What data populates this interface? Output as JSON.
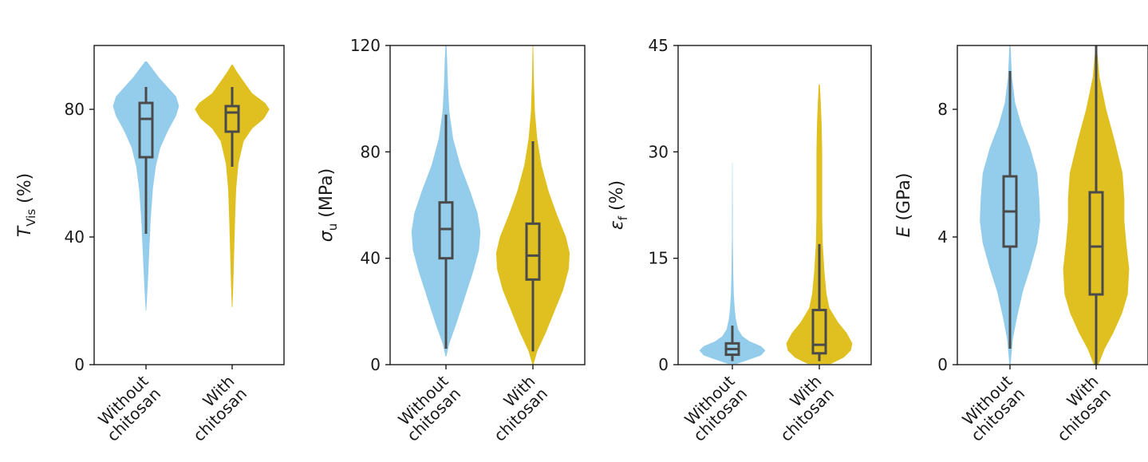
{
  "colors": {
    "without_chitosan": "#93cdeb",
    "with_chitosan": "#dfc020",
    "box": "#4a4a4a"
  },
  "chart_data": [
    {
      "type": "violin",
      "ylabel": {
        "main": "T",
        "sub": "Vis",
        "rest": " (%)"
      },
      "ylim": [
        0,
        100
      ],
      "yticks": [
        0,
        40,
        80
      ],
      "categories": [
        "Without\nchitosan",
        "With\nchitosan"
      ],
      "series": [
        {
          "color_key": "without_chitosan",
          "box": {
            "whisker_low": 41,
            "q1": 65,
            "median": 77,
            "q3": 82,
            "whisker_high": 87
          },
          "density": [
            [
              17,
              0.1
            ],
            [
              25,
              0.6
            ],
            [
              35,
              1.1
            ],
            [
              45,
              1.6
            ],
            [
              55,
              2.4
            ],
            [
              62,
              3.4
            ],
            [
              68,
              5
            ],
            [
              73,
              7.5
            ],
            [
              78,
              10.5
            ],
            [
              81,
              11.5
            ],
            [
              84,
              10.5
            ],
            [
              87,
              7.5
            ],
            [
              90,
              4.5
            ],
            [
              93,
              2
            ],
            [
              95,
              0.3
            ]
          ]
        },
        {
          "color_key": "with_chitosan",
          "box": {
            "whisker_low": 62,
            "q1": 73,
            "median": 79,
            "q3": 81,
            "whisker_high": 87
          },
          "density": [
            [
              18,
              0.1
            ],
            [
              25,
              0.4
            ],
            [
              35,
              0.7
            ],
            [
              45,
              1
            ],
            [
              55,
              1.4
            ],
            [
              63,
              2.2
            ],
            [
              70,
              4
            ],
            [
              74,
              7
            ],
            [
              77,
              11
            ],
            [
              80,
              13
            ],
            [
              82,
              11.5
            ],
            [
              85,
              7
            ],
            [
              89,
              3.8
            ],
            [
              92,
              1.5
            ],
            [
              94,
              0.2
            ]
          ]
        }
      ]
    },
    {
      "type": "violin",
      "ylabel": {
        "main": "σ",
        "sub": "u",
        "rest": " (MPa)"
      },
      "ylim": [
        0,
        120
      ],
      "yticks": [
        0,
        40,
        80,
        120
      ],
      "categories": [
        "Without\nchitosan",
        "With\nchitosan"
      ],
      "series": [
        {
          "color_key": "without_chitosan",
          "box": {
            "whisker_low": 6,
            "q1": 40,
            "median": 51,
            "q3": 61,
            "whisker_high": 94
          },
          "density": [
            [
              3,
              0.1
            ],
            [
              8,
              1.2
            ],
            [
              15,
              3.5
            ],
            [
              25,
              6.5
            ],
            [
              35,
              9.5
            ],
            [
              43,
              11.5
            ],
            [
              50,
              12
            ],
            [
              57,
              11
            ],
            [
              65,
              8.5
            ],
            [
              75,
              5
            ],
            [
              85,
              2.5
            ],
            [
              95,
              1.2
            ],
            [
              105,
              0.7
            ],
            [
              115,
              0.4
            ],
            [
              120,
              0.2
            ]
          ]
        },
        {
          "color_key": "with_chitosan",
          "box": {
            "whisker_low": 5,
            "q1": 32,
            "median": 41,
            "q3": 53,
            "whisker_high": 84
          },
          "density": [
            [
              0,
              0.2
            ],
            [
              5,
              1.5
            ],
            [
              12,
              4.5
            ],
            [
              20,
              7.5
            ],
            [
              28,
              10.5
            ],
            [
              36,
              12.5
            ],
            [
              42,
              12.8
            ],
            [
              48,
              11.5
            ],
            [
              56,
              8.5
            ],
            [
              65,
              5.5
            ],
            [
              75,
              3
            ],
            [
              85,
              1.5
            ],
            [
              95,
              0.7
            ],
            [
              108,
              0.3
            ],
            [
              120,
              0.1
            ]
          ]
        }
      ]
    },
    {
      "type": "violin",
      "ylabel": {
        "main": "ε",
        "sub": "f",
        "rest": " (%)"
      },
      "ylim": [
        0,
        45
      ],
      "yticks": [
        0,
        15,
        30,
        45
      ],
      "categories": [
        "Without\nchitosan",
        "With\nchitosan"
      ],
      "series": [
        {
          "color_key": "without_chitosan",
          "box": {
            "whisker_low": 0.5,
            "q1": 1.4,
            "median": 2.2,
            "q3": 3.0,
            "whisker_high": 5.5
          },
          "density": [
            [
              0.1,
              1.5
            ],
            [
              0.6,
              5
            ],
            [
              1.3,
              10
            ],
            [
              2,
              11.5
            ],
            [
              2.6,
              10
            ],
            [
              3.3,
              6
            ],
            [
              4,
              3.5
            ],
            [
              5,
              2
            ],
            [
              6.5,
              1.2
            ],
            [
              8,
              0.8
            ],
            [
              10,
              0.5
            ],
            [
              13,
              0.3
            ],
            [
              18,
              0.15
            ],
            [
              23,
              0.1
            ],
            [
              28.5,
              0.05
            ]
          ]
        },
        {
          "color_key": "with_chitosan",
          "box": {
            "whisker_low": 0.5,
            "q1": 1.6,
            "median": 2.8,
            "q3": 7.7,
            "whisker_high": 17
          },
          "density": [
            [
              0.1,
              4
            ],
            [
              1,
              8.5
            ],
            [
              2,
              11
            ],
            [
              3,
              11.5
            ],
            [
              4.5,
              9.5
            ],
            [
              6,
              6.5
            ],
            [
              8,
              3.5
            ],
            [
              10,
              2.5
            ],
            [
              13,
              1.8
            ],
            [
              17,
              1.2
            ],
            [
              21,
              1
            ],
            [
              25,
              1
            ],
            [
              30,
              1
            ],
            [
              34,
              0.8
            ],
            [
              37,
              0.5
            ],
            [
              39.5,
              0.2
            ]
          ]
        }
      ]
    },
    {
      "type": "violin",
      "ylabel": {
        "main": "E",
        "sub": "",
        "rest": " (GPa)"
      },
      "ylim": [
        0,
        10
      ],
      "yticks": [
        0,
        4,
        8
      ],
      "categories": [
        "Without\nchitosan",
        "With\nchitosan"
      ],
      "series": [
        {
          "color_key": "without_chitosan",
          "box": {
            "whisker_low": 0.5,
            "q1": 3.7,
            "median": 4.8,
            "q3": 5.9,
            "whisker_high": 9.2
          },
          "density": [
            [
              0,
              0.2
            ],
            [
              0.8,
              1
            ],
            [
              1.5,
              2.5
            ],
            [
              2.3,
              4.5
            ],
            [
              3,
              7
            ],
            [
              3.8,
              9.5
            ],
            [
              4.5,
              10.5
            ],
            [
              5.2,
              10.2
            ],
            [
              6,
              9.5
            ],
            [
              6.8,
              7
            ],
            [
              7.5,
              4
            ],
            [
              8.2,
              1.8
            ],
            [
              9,
              0.7
            ],
            [
              10,
              0.2
            ]
          ]
        },
        {
          "color_key": "with_chitosan",
          "box": {
            "whisker_low": 0,
            "q1": 2.2,
            "median": 3.7,
            "q3": 5.4,
            "whisker_high": 10
          },
          "density": [
            [
              0,
              0.8
            ],
            [
              0.5,
              3
            ],
            [
              1,
              6
            ],
            [
              1.6,
              9
            ],
            [
              2.2,
              11
            ],
            [
              3,
              11.5
            ],
            [
              3.8,
              10.5
            ],
            [
              4.5,
              9.8
            ],
            [
              5.2,
              9.8
            ],
            [
              6,
              9.2
            ],
            [
              7,
              6.5
            ],
            [
              8,
              3.5
            ],
            [
              9,
              1.2
            ],
            [
              10,
              0.2
            ]
          ]
        }
      ]
    }
  ]
}
